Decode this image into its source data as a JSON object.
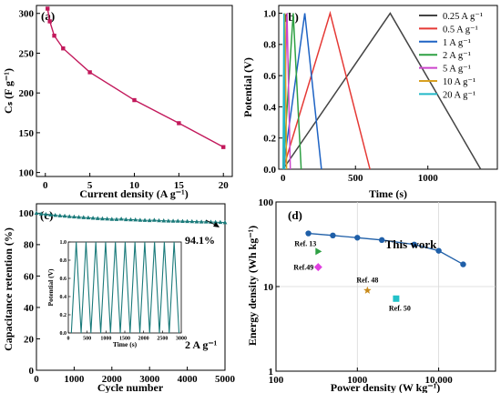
{
  "chart_data": [
    {
      "id": "a",
      "panel_label": "(a)",
      "type": "line",
      "xlabel": "Current density (A g⁻¹)",
      "ylabel": "Cₛ (F g⁻¹)",
      "xlim": [
        -1,
        21
      ],
      "ylim": [
        95,
        310
      ],
      "xticks": [
        "0",
        "5",
        "10",
        "15",
        "20"
      ],
      "xtick_values": [
        0,
        5,
        10,
        15,
        20
      ],
      "yticks": [
        "100",
        "150",
        "200",
        "250",
        "300"
      ],
      "ytick_values": [
        100,
        150,
        200,
        250,
        300
      ],
      "color": "#c2185b",
      "series": [
        {
          "x": [
            0.25,
            0.5,
            1,
            2,
            5,
            10,
            15,
            20
          ],
          "y": [
            306,
            290,
            272,
            256,
            226,
            191,
            162,
            132
          ]
        }
      ]
    },
    {
      "id": "b",
      "panel_label": "(b)",
      "type": "line",
      "xlabel": "Time (s)",
      "ylabel": "Potential (V)",
      "xlim": [
        -30,
        1480
      ],
      "ylim": [
        0,
        1.05
      ],
      "xticks": [
        "0",
        "500",
        "1000"
      ],
      "xtick_values": [
        0,
        500,
        1000
      ],
      "yticks": [
        "0.0",
        "0.2",
        "0.4",
        "0.6",
        "0.8",
        "1.0"
      ],
      "ytick_values": [
        0,
        0.2,
        0.4,
        0.6,
        0.8,
        1.0
      ],
      "legend_position": "top-right",
      "series": [
        {
          "name": "0.25 A g⁻¹",
          "color": "#444444",
          "x": [
            0,
            740,
            1365
          ],
          "y": [
            0,
            1.0,
            0
          ]
        },
        {
          "name": "0.5 A g⁻¹",
          "color": "#e53935",
          "x": [
            0,
            325,
            600
          ],
          "y": [
            0,
            1.0,
            0
          ]
        },
        {
          "name": "1 A g⁻¹",
          "color": "#1e63c4",
          "x": [
            0,
            150,
            265
          ],
          "y": [
            0,
            1.0,
            0
          ]
        },
        {
          "name": "2 A g⁻¹",
          "color": "#2ea043",
          "x": [
            0,
            70,
            125
          ],
          "y": [
            0,
            1.0,
            0
          ]
        },
        {
          "name": "5 A g⁻¹",
          "color": "#cc44cc",
          "x": [
            0,
            27,
            50
          ],
          "y": [
            0,
            1.0,
            0
          ]
        },
        {
          "name": "10 A g⁻¹",
          "color": "#d8a020",
          "x": [
            0,
            13,
            24
          ],
          "y": [
            0,
            1.0,
            0
          ]
        },
        {
          "name": "20 A g⁻¹",
          "color": "#22b8c8",
          "x": [
            0,
            6,
            11
          ],
          "y": [
            0,
            1.0,
            0
          ]
        }
      ]
    },
    {
      "id": "c",
      "panel_label": "(c)",
      "type": "scatter",
      "xlabel": "Cycle number",
      "ylabel": "Capacitance retention (%)",
      "xlim": [
        0,
        5000
      ],
      "ylim": [
        0,
        106
      ],
      "xticks": [
        "0",
        "1000",
        "2000",
        "3000",
        "4000",
        "5000"
      ],
      "xtick_values": [
        0,
        1000,
        2000,
        3000,
        4000,
        5000
      ],
      "yticks": [
        "0",
        "20",
        "40",
        "60",
        "80",
        "100"
      ],
      "ytick_values": [
        0,
        20,
        40,
        60,
        80,
        100
      ],
      "color": "#1a7a7a",
      "annotations": [
        "94.1%",
        "2 A g⁻¹"
      ],
      "series": [
        {
          "x": [
            0,
            125,
            250,
            375,
            500,
            625,
            750,
            875,
            1000,
            1125,
            1250,
            1375,
            1500,
            1625,
            1750,
            1875,
            2000,
            2125,
            2250,
            2375,
            2500,
            2625,
            2750,
            2875,
            3000,
            3125,
            3250,
            3375,
            3500,
            3625,
            3750,
            3875,
            4000,
            4125,
            4250,
            4375,
            4500,
            4625,
            4750,
            4875,
            5000
          ],
          "y": [
            100,
            99.6,
            99.3,
            99.0,
            98.7,
            98.4,
            98.2,
            97.9,
            97.7,
            97.5,
            97.3,
            97.1,
            96.9,
            96.7,
            96.5,
            96.4,
            96.2,
            96.1,
            96.3,
            96.0,
            95.9,
            95.8,
            95.6,
            95.5,
            95.4,
            95.6,
            95.3,
            95.2,
            95.1,
            95.0,
            95.0,
            94.9,
            94.8,
            94.7,
            94.6,
            94.5,
            94.5,
            94.4,
            94.3,
            94.2,
            94.1
          ]
        }
      ],
      "inset": {
        "type": "line",
        "xlabel": "Time (s)",
        "ylabel": "Potential (V)",
        "xlim": [
          0,
          3000
        ],
        "ylim": [
          0,
          1.0
        ],
        "xticks": [
          "0",
          "500",
          "1000",
          "1500",
          "2000",
          "2500",
          "3000"
        ],
        "xtick_values": [
          0,
          500,
          1000,
          1500,
          2000,
          2500,
          3000
        ],
        "yticks": [
          "0.0",
          "0.2",
          "0.4",
          "0.6",
          "0.8",
          "1.0"
        ],
        "ytick_values": [
          0,
          0.2,
          0.4,
          0.6,
          0.8,
          1.0
        ],
        "color": "#1a7a7a",
        "cycle_period_s": 260,
        "cycles": 11
      }
    },
    {
      "id": "d",
      "panel_label": "(d)",
      "type": "scatter",
      "xscale": "log",
      "yscale": "log",
      "xlabel": "Power density (W kg⁻¹)",
      "ylabel": "Energy density (Wh kg⁻¹)",
      "xlim": [
        100,
        50000
      ],
      "ylim": [
        1,
        100
      ],
      "xticks": [
        "100",
        "1000",
        "10,000"
      ],
      "xtick_values": [
        100,
        1000,
        10000
      ],
      "yticks": [
        "1",
        "10",
        "100"
      ],
      "ytick_values": [
        1,
        10,
        100
      ],
      "grid": true,
      "series": [
        {
          "name": "This work",
          "color": "#1f5fa8",
          "x": [
            250,
            500,
            1000,
            2000,
            5000,
            10000,
            20000
          ],
          "y": [
            42.5,
            40.2,
            37.8,
            35.5,
            31.4,
            26.5,
            18.3
          ]
        }
      ],
      "references": [
        {
          "label": "Ref. 13",
          "x": 330,
          "y": 26,
          "marker": "triangle",
          "color": "#2ea043"
        },
        {
          "label": "Ref.49",
          "x": 330,
          "y": 17,
          "marker": "diamond",
          "color": "#e040e0"
        },
        {
          "label": "Ref. 48",
          "x": 1330,
          "y": 9,
          "marker": "star",
          "color": "#c88a1a"
        },
        {
          "label": "Ref. 50",
          "x": 3000,
          "y": 7.2,
          "marker": "square",
          "color": "#22c1c8"
        }
      ]
    }
  ]
}
